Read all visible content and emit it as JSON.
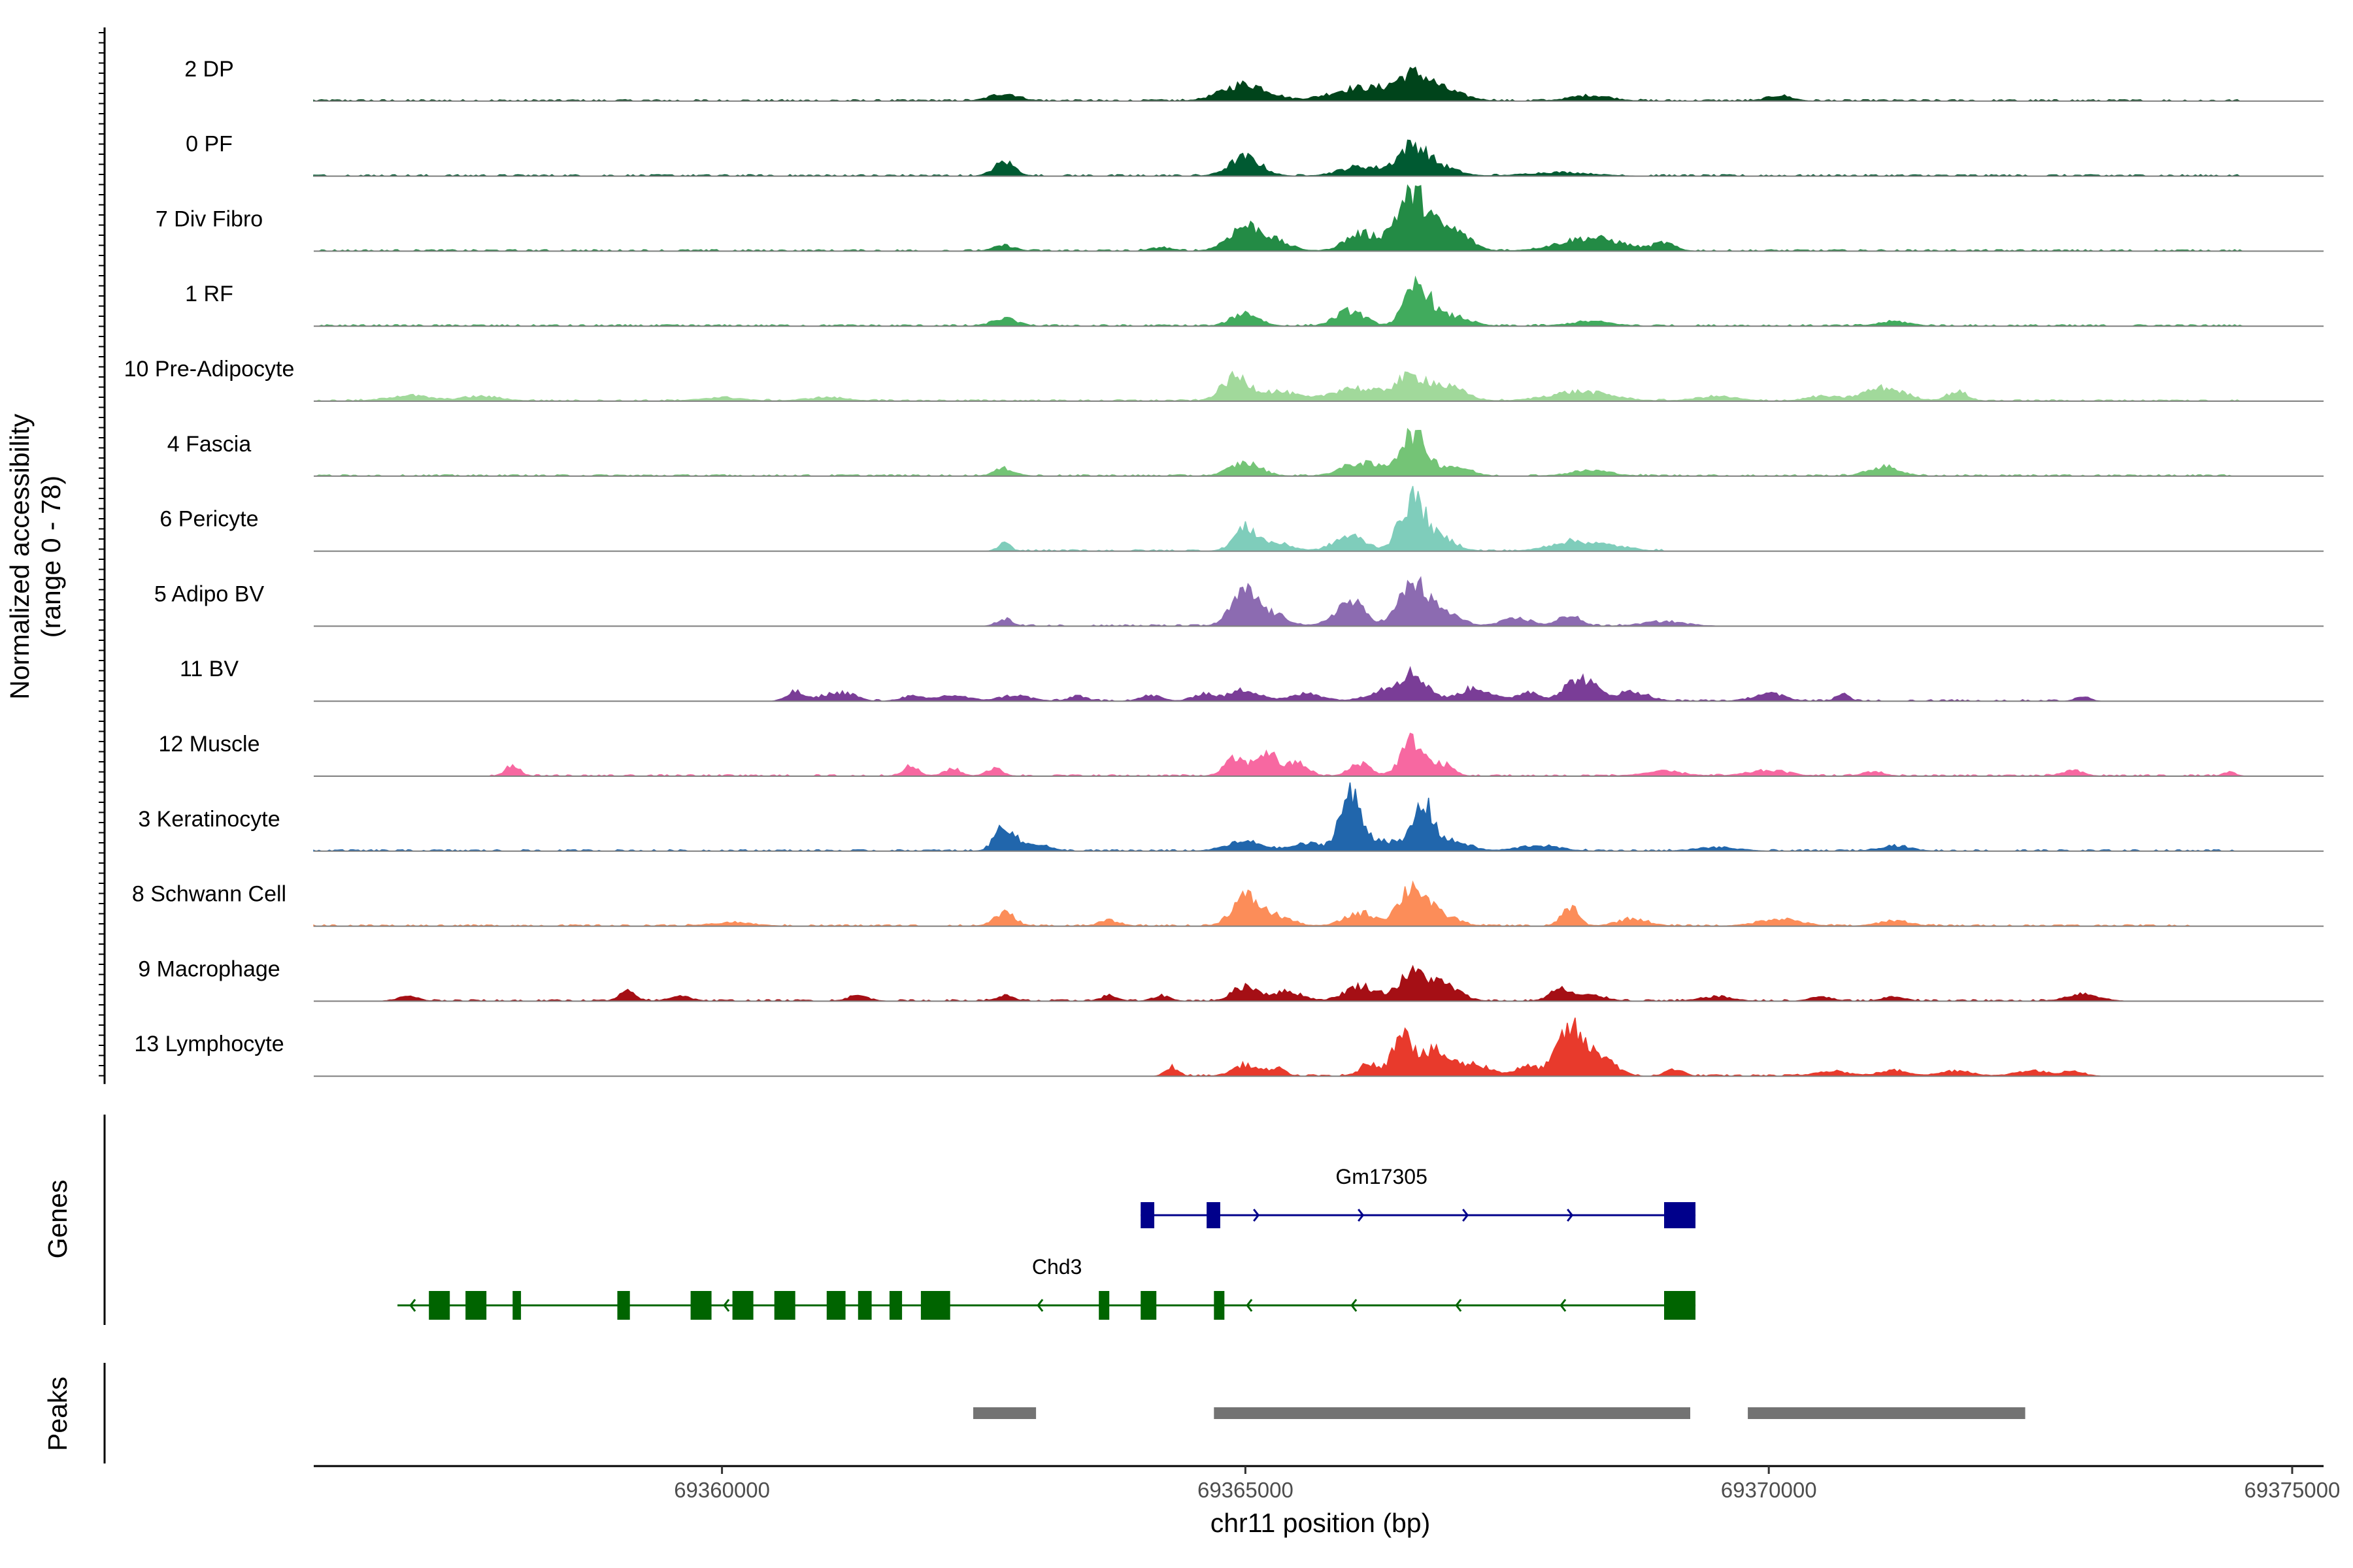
{
  "chart_data": {
    "type": "area",
    "title": "",
    "ylabel": "Normalized accessibility\n(range 0 - 78)",
    "xlabel": "chr11 position (bp)",
    "chromosome": "chr11",
    "xlim": [
      69356100,
      69375300
    ],
    "ylim": [
      0,
      78
    ],
    "x_ticks": [
      69360000,
      69365000,
      69370000,
      69375000
    ],
    "x_tick_labels": [
      "69360000",
      "69365000",
      "69370000",
      "69375000"
    ],
    "tracks": [
      {
        "name": "2 DP",
        "color": "#00441b",
        "peaks": [
          [
            69362700,
            8,
            140
          ],
          [
            69365000,
            18,
            220
          ],
          [
            69366100,
            14,
            280
          ],
          [
            69366600,
            24,
            160
          ],
          [
            69366900,
            10,
            200
          ],
          [
            69368300,
            6,
            200
          ],
          [
            69370100,
            6,
            120
          ]
        ],
        "noise_range": [
          69356100,
          69374500
        ]
      },
      {
        "name": "0 PF",
        "color": "#005a32",
        "peaks": [
          [
            69362700,
            15,
            100
          ],
          [
            69365000,
            20,
            150
          ],
          [
            69366100,
            10,
            200
          ],
          [
            69366600,
            32,
            140
          ],
          [
            69366900,
            8,
            150
          ],
          [
            69368000,
            4,
            300
          ]
        ],
        "noise_range": [
          69356100,
          69374500
        ]
      },
      {
        "name": "7 Div Fibro",
        "color": "#238b45",
        "peaks": [
          [
            69365000,
            26,
            160
          ],
          [
            69365300,
            8,
            150
          ],
          [
            69366100,
            18,
            150
          ],
          [
            69366600,
            60,
            160
          ],
          [
            69367000,
            20,
            150
          ],
          [
            69368300,
            14,
            300
          ],
          [
            69369000,
            8,
            100
          ],
          [
            69362700,
            6,
            100
          ],
          [
            69364200,
            4,
            100
          ]
        ],
        "noise_range": [
          69356100,
          69374500
        ]
      },
      {
        "name": "1 RF",
        "color": "#41ab5d",
        "peaks": [
          [
            69362700,
            8,
            120
          ],
          [
            69365000,
            14,
            130
          ],
          [
            69366000,
            16,
            140
          ],
          [
            69366650,
            44,
            120
          ],
          [
            69367000,
            10,
            150
          ],
          [
            69368300,
            5,
            200
          ],
          [
            69371200,
            5,
            150
          ]
        ],
        "noise_range": [
          69356100,
          69374500
        ]
      },
      {
        "name": "10 Pre-Adipocyte",
        "color": "#a1d99b",
        "peaks": [
          [
            69357000,
            6,
            200
          ],
          [
            69357700,
            5,
            200
          ],
          [
            69364900,
            24,
            130
          ],
          [
            69365300,
            10,
            200
          ],
          [
            69366000,
            14,
            180
          ],
          [
            69366600,
            26,
            200
          ],
          [
            69367000,
            10,
            150
          ],
          [
            69368200,
            10,
            300
          ],
          [
            69371100,
            14,
            200
          ],
          [
            69371800,
            10,
            100
          ],
          [
            69360000,
            4,
            200
          ],
          [
            69361000,
            4,
            200
          ],
          [
            69369500,
            5,
            200
          ],
          [
            69370500,
            5,
            150
          ]
        ],
        "noise_range": [
          69356100,
          69374500
        ]
      },
      {
        "name": "4 Fascia",
        "color": "#74c476",
        "peaks": [
          [
            69362700,
            8,
            100
          ],
          [
            69365000,
            14,
            150
          ],
          [
            69366100,
            14,
            180
          ],
          [
            69366600,
            44,
            130
          ],
          [
            69367000,
            10,
            150
          ],
          [
            69368300,
            6,
            200
          ],
          [
            69371100,
            10,
            150
          ]
        ],
        "noise_range": [
          69356100,
          69374500
        ]
      },
      {
        "name": "6 Pericyte",
        "color": "#7fcdbb",
        "peaks": [
          [
            69362700,
            8,
            60
          ],
          [
            69365000,
            24,
            110
          ],
          [
            69365300,
            8,
            150
          ],
          [
            69366000,
            16,
            150
          ],
          [
            69366600,
            56,
            120
          ],
          [
            69366900,
            12,
            130
          ],
          [
            69368100,
            10,
            200
          ],
          [
            69368500,
            5,
            200
          ]
        ],
        "noise_range": [
          69362600,
          69369000
        ]
      },
      {
        "name": "5 Adipo BV",
        "color": "#8c6bb1",
        "peaks": [
          [
            69362700,
            8,
            70
          ],
          [
            69365000,
            36,
            130
          ],
          [
            69365300,
            10,
            130
          ],
          [
            69366000,
            26,
            140
          ],
          [
            69366600,
            44,
            130
          ],
          [
            69366900,
            14,
            150
          ],
          [
            69367600,
            8,
            150
          ],
          [
            69368100,
            12,
            100
          ],
          [
            69369000,
            5,
            200
          ]
        ],
        "noise_range": [
          69362600,
          69369000
        ]
      },
      {
        "name": "11 BV",
        "color": "#7a3d97",
        "peaks": [
          [
            69360700,
            10,
            80
          ],
          [
            69361000,
            6,
            100
          ],
          [
            69361200,
            8,
            100
          ],
          [
            69361800,
            5,
            100
          ],
          [
            69362200,
            6,
            150
          ],
          [
            69362800,
            6,
            150
          ],
          [
            69363400,
            6,
            80
          ],
          [
            69364100,
            6,
            100
          ],
          [
            69364600,
            8,
            100
          ],
          [
            69365000,
            12,
            150
          ],
          [
            69365600,
            8,
            150
          ],
          [
            69366300,
            10,
            150
          ],
          [
            69366600,
            28,
            140
          ],
          [
            69367200,
            14,
            150
          ],
          [
            69367700,
            10,
            100
          ],
          [
            69368200,
            24,
            150
          ],
          [
            69368700,
            10,
            150
          ],
          [
            69370000,
            8,
            150
          ],
          [
            69370700,
            8,
            60
          ],
          [
            69373000,
            6,
            60
          ]
        ],
        "noise_range": [
          69360600,
          69373100
        ]
      },
      {
        "name": "12 Muscle",
        "color": "#f768a1",
        "peaks": [
          [
            69358000,
            12,
            70
          ],
          [
            69361800,
            10,
            80
          ],
          [
            69362200,
            8,
            80
          ],
          [
            69362600,
            8,
            80
          ],
          [
            69364900,
            18,
            100
          ],
          [
            69365200,
            26,
            100
          ],
          [
            69365500,
            14,
            100
          ],
          [
            69366100,
            14,
            100
          ],
          [
            69366600,
            38,
            110
          ],
          [
            69366900,
            12,
            90
          ],
          [
            69369000,
            5,
            200
          ],
          [
            69370000,
            6,
            200
          ],
          [
            69371000,
            5,
            100
          ],
          [
            69372900,
            6,
            100
          ],
          [
            69374400,
            4,
            60
          ]
        ],
        "noise_range": [
          69357600,
          69374500
        ]
      },
      {
        "name": "3 Keratinocyte",
        "color": "#2166ac",
        "peaks": [
          [
            69362700,
            28,
            90
          ],
          [
            69363000,
            8,
            120
          ],
          [
            69365000,
            10,
            180
          ],
          [
            69365600,
            8,
            150
          ],
          [
            69366000,
            58,
            100
          ],
          [
            69366300,
            12,
            150
          ],
          [
            69366700,
            48,
            100
          ],
          [
            69367000,
            10,
            150
          ],
          [
            69367800,
            6,
            200
          ],
          [
            69369500,
            4,
            200
          ],
          [
            69371200,
            6,
            150
          ]
        ],
        "noise_range": [
          69356100,
          69374500
        ]
      },
      {
        "name": "8 Schwann Cell",
        "color": "#fc8d59",
        "peaks": [
          [
            69362700,
            14,
            100
          ],
          [
            69363700,
            6,
            100
          ],
          [
            69365000,
            30,
            130
          ],
          [
            69365300,
            10,
            150
          ],
          [
            69366100,
            14,
            150
          ],
          [
            69366600,
            42,
            130
          ],
          [
            69366900,
            10,
            150
          ],
          [
            69368100,
            20,
            80
          ],
          [
            69368700,
            8,
            150
          ],
          [
            69370100,
            8,
            200
          ],
          [
            69371200,
            6,
            150
          ],
          [
            69360100,
            4,
            200
          ]
        ],
        "noise_range": [
          69356100,
          69374000
        ]
      },
      {
        "name": "9 Macrophage",
        "color": "#a50f15",
        "peaks": [
          [
            69357000,
            5,
            100
          ],
          [
            69359100,
            10,
            80
          ],
          [
            69359600,
            6,
            100
          ],
          [
            69361300,
            6,
            100
          ],
          [
            69362700,
            6,
            80
          ],
          [
            69363700,
            6,
            80
          ],
          [
            69364200,
            6,
            80
          ],
          [
            69365000,
            16,
            120
          ],
          [
            69365400,
            10,
            150
          ],
          [
            69366100,
            16,
            150
          ],
          [
            69366600,
            28,
            140
          ],
          [
            69366900,
            16,
            150
          ],
          [
            69368000,
            12,
            100
          ],
          [
            69368300,
            6,
            150
          ],
          [
            69369500,
            5,
            150
          ],
          [
            69370500,
            5,
            100
          ],
          [
            69371200,
            5,
            100
          ],
          [
            69373000,
            8,
            150
          ]
        ],
        "noise_range": [
          69356800,
          69373300
        ]
      },
      {
        "name": "13 Lymphocyte",
        "color": "#e83a2c",
        "peaks": [
          [
            69364300,
            10,
            60
          ],
          [
            69365000,
            12,
            120
          ],
          [
            69365300,
            8,
            80
          ],
          [
            69366200,
            14,
            100
          ],
          [
            69366500,
            52,
            80
          ],
          [
            69366800,
            26,
            150
          ],
          [
            69367200,
            12,
            150
          ],
          [
            69367700,
            10,
            120
          ],
          [
            69368100,
            50,
            120
          ],
          [
            69368400,
            22,
            130
          ],
          [
            69369100,
            8,
            80
          ],
          [
            69370600,
            6,
            150
          ],
          [
            69371200,
            6,
            150
          ],
          [
            69371800,
            6,
            150
          ],
          [
            69372500,
            6,
            150
          ],
          [
            69372900,
            6,
            100
          ]
        ],
        "noise_range": [
          69364200,
          69373000
        ]
      }
    ],
    "genes_label": "Genes",
    "peaks_label": "Peaks",
    "genes": [
      {
        "name": "Gm17305",
        "strand": "+",
        "color": "#00008b",
        "start": 69364000,
        "end": 69369300,
        "exons": [
          [
            69364000,
            69364130
          ],
          [
            69364630,
            69364760
          ],
          [
            69369000,
            69369300
          ]
        ]
      },
      {
        "name": "Chd3",
        "strand": "-",
        "color": "#006400",
        "start": 69356900,
        "end": 69369300,
        "exons": [
          [
            69357200,
            69357400
          ],
          [
            69357550,
            69357750
          ],
          [
            69358000,
            69358080
          ],
          [
            69359000,
            69359120
          ],
          [
            69359700,
            69359900
          ],
          [
            69360100,
            69360300
          ],
          [
            69360500,
            69360700
          ],
          [
            69361000,
            69361180
          ],
          [
            69361300,
            69361430
          ],
          [
            69361600,
            69361720
          ],
          [
            69361900,
            69362180
          ],
          [
            69363600,
            69363700
          ],
          [
            69364000,
            69364150
          ],
          [
            69364700,
            69364800
          ],
          [
            69369000,
            69369300
          ]
        ]
      }
    ],
    "peak_regions": [
      [
        69362400,
        69363000
      ],
      [
        69364700,
        69369250
      ],
      [
        69369800,
        69372450
      ]
    ]
  }
}
